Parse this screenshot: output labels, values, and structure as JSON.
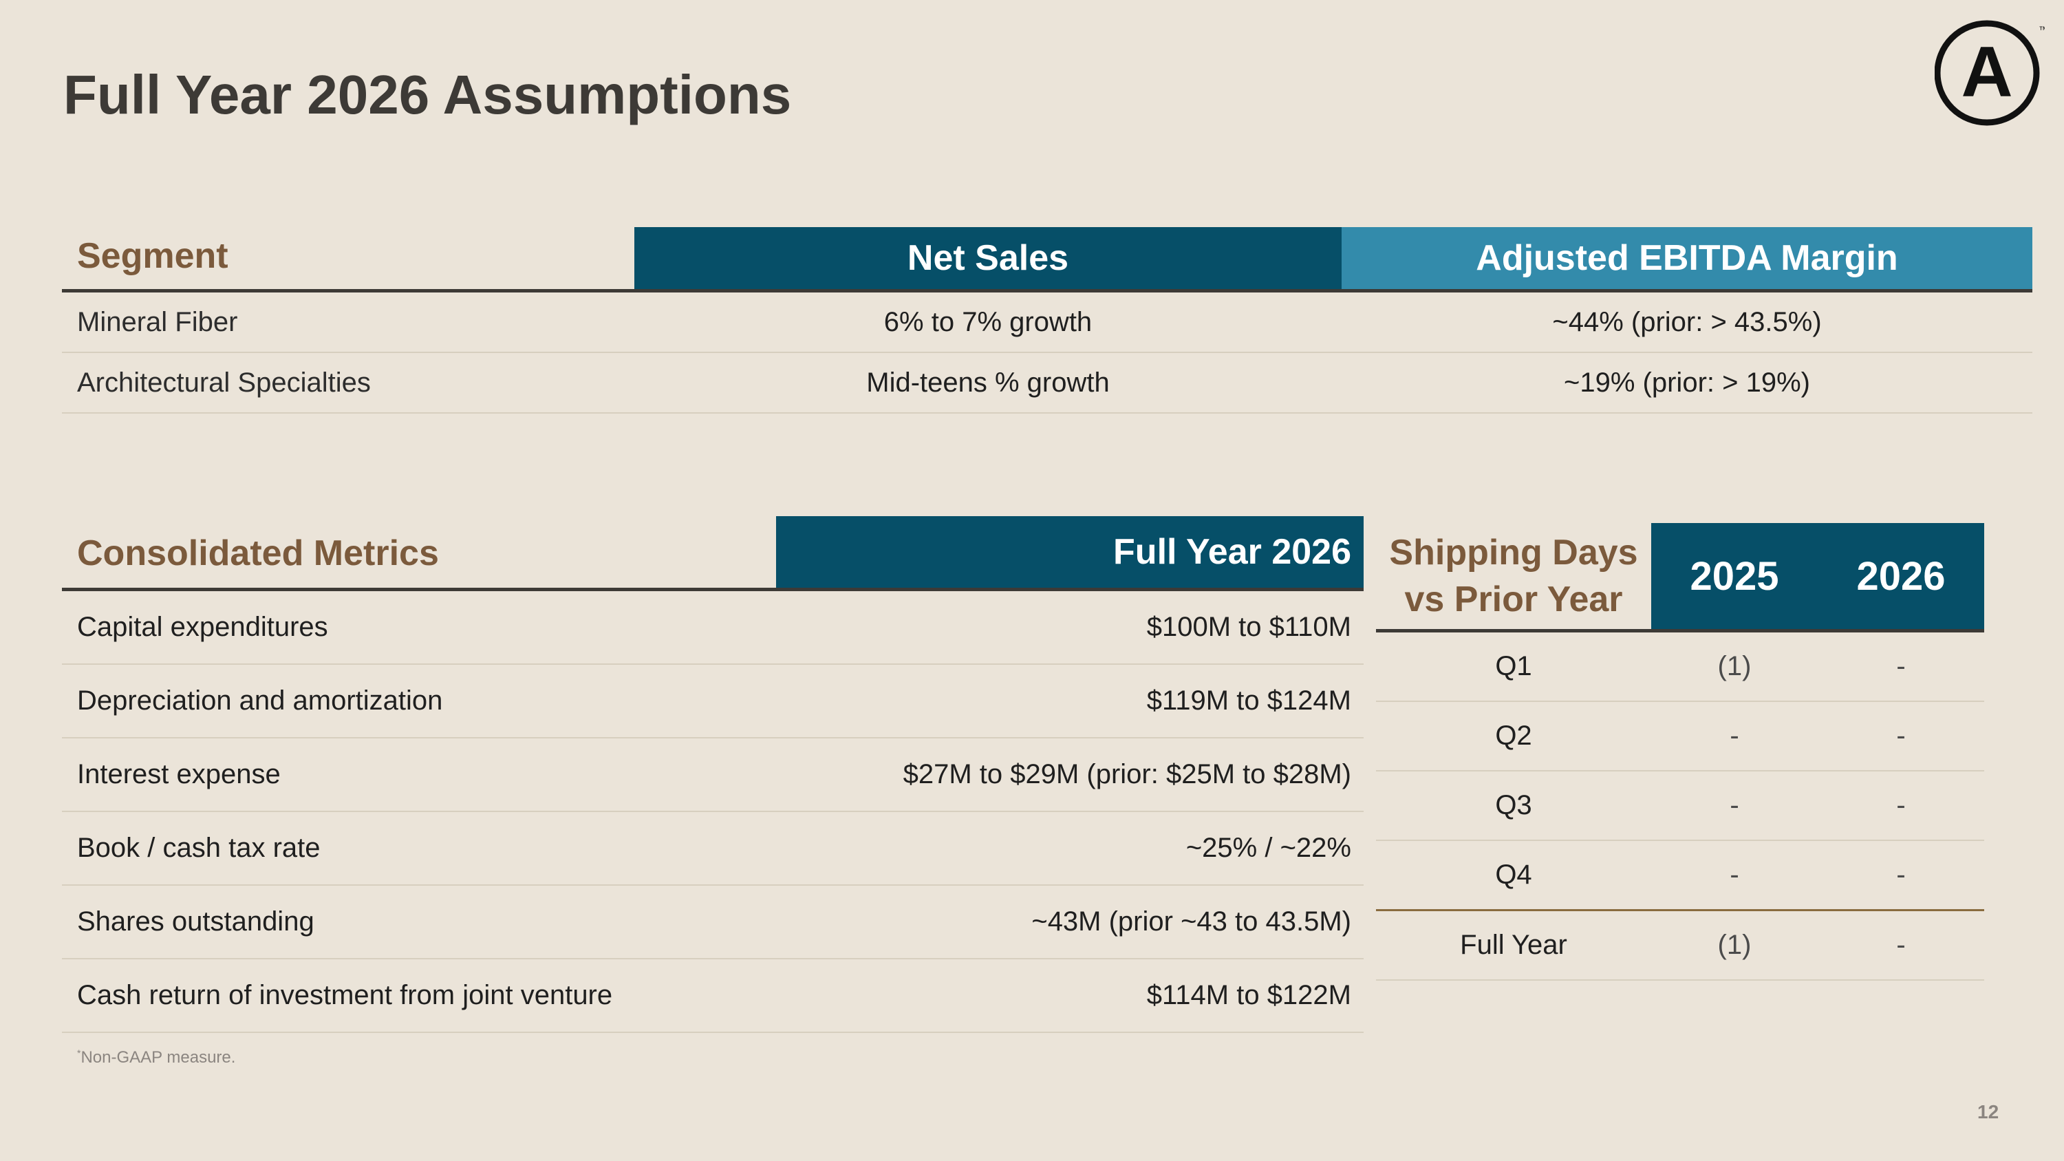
{
  "title": "Full Year 2026 Assumptions",
  "logo": {
    "letter": "A",
    "mark": "™"
  },
  "segment_table": {
    "header": {
      "segment": "Segment",
      "net_sales": "Net Sales",
      "margin": "Adjusted EBITDA Margin"
    },
    "rows": [
      {
        "segment": "Mineral Fiber",
        "net_sales": "6% to 7% growth",
        "margin": "~44% (prior: > 43.5%)"
      },
      {
        "segment": "Architectural Specialties",
        "net_sales": "Mid-teens % growth",
        "margin": "~19% (prior: > 19%)"
      }
    ]
  },
  "consolidated": {
    "header": {
      "label": "Consolidated Metrics",
      "value": "Full Year 2026"
    },
    "rows": [
      {
        "label": "Capital expenditures",
        "value": "$100M to $110M"
      },
      {
        "label": "Depreciation and amortization",
        "value": "$119M to $124M"
      },
      {
        "label": "Interest expense",
        "value": "$27M to $29M (prior: $25M to $28M)"
      },
      {
        "label": "Book / cash tax rate",
        "value": "~25% / ~22%"
      },
      {
        "label": "Shares outstanding",
        "value": "~43M (prior ~43 to 43.5M)"
      },
      {
        "label": "Cash return of investment from joint venture",
        "value": "$114M to $122M"
      }
    ]
  },
  "shipping": {
    "header": {
      "line1": "Shipping Days",
      "line2": "vs Prior Year",
      "y1": "2025",
      "y2": "2026"
    },
    "rows": [
      {
        "q": "Q1",
        "y1": "(1)",
        "y2": "-"
      },
      {
        "q": "Q2",
        "y1": "-",
        "y2": "-"
      },
      {
        "q": "Q3",
        "y1": "-",
        "y2": "-"
      },
      {
        "q": "Q4",
        "y1": "-",
        "y2": "-"
      },
      {
        "q": "Full Year",
        "y1": "(1)",
        "y2": "-"
      }
    ]
  },
  "footnote": {
    "marker": "*",
    "text": "Non-GAAP measure."
  },
  "page_number": "12",
  "colors": {
    "navy": "#064f68",
    "teal": "#338bab",
    "brown": "#7b5a3c",
    "background": "#ebe4d9"
  }
}
